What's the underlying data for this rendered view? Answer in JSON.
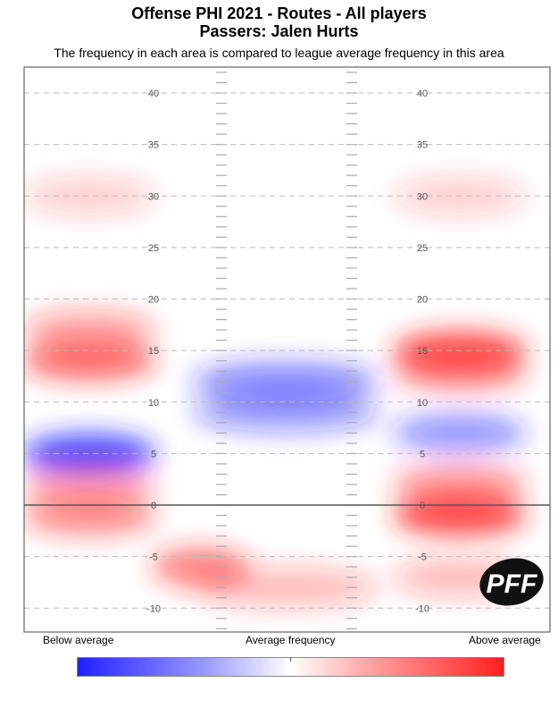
{
  "chart_data": {
    "type": "heatmap",
    "title_line1": "Offense PHI 2021 - Routes - All players",
    "title_line2": "Passers: Jalen Hurts",
    "subtitle": "The frequency in each area is compared to league average frequency in this area",
    "ylim": [
      -12,
      42
    ],
    "yticks": [
      40,
      35,
      30,
      25,
      20,
      15,
      10,
      5,
      0,
      -5,
      -10
    ],
    "tick_labels": [
      "40",
      "35",
      "30",
      "25",
      "20",
      "15",
      "10",
      "5",
      "0",
      "-5",
      "-10"
    ],
    "line_of_scrimmage": 0,
    "scale": "diverging",
    "colors": {
      "below": "#1f1fff",
      "average": "#ffffff",
      "above": "#ff1f1f",
      "line": "#555555",
      "grid": "#bbbbbb"
    },
    "hotspots": [
      {
        "side": "left",
        "yard": 14,
        "effect": "above",
        "strength": 0.75
      },
      {
        "side": "left",
        "yard": 17,
        "effect": "above",
        "strength": 0.45
      },
      {
        "side": "left",
        "yard": 30,
        "effect": "above",
        "strength": 0.25
      },
      {
        "side": "left",
        "yard": 5,
        "effect": "below",
        "strength": 0.95
      },
      {
        "side": "left",
        "yard": 2,
        "effect": "above",
        "strength": 0.45
      },
      {
        "side": "left",
        "yard": -1,
        "effect": "above",
        "strength": 0.6
      },
      {
        "side": "center-left",
        "yard": -6,
        "effect": "above",
        "strength": 0.65
      },
      {
        "side": "center",
        "yard": 12,
        "effect": "below",
        "strength": 0.6
      },
      {
        "side": "center",
        "yard": 9,
        "effect": "below",
        "strength": 0.5
      },
      {
        "side": "center",
        "yard": -8,
        "effect": "above",
        "strength": 0.35
      },
      {
        "side": "right",
        "yard": 15,
        "effect": "above",
        "strength": 0.9
      },
      {
        "side": "right",
        "yard": 13,
        "effect": "above",
        "strength": 0.6
      },
      {
        "side": "right",
        "yard": 30,
        "effect": "above",
        "strength": 0.25
      },
      {
        "side": "right",
        "yard": 7,
        "effect": "below",
        "strength": 0.55
      },
      {
        "side": "right",
        "yard": 2,
        "effect": "above",
        "strength": 0.55
      },
      {
        "side": "right",
        "yard": -1,
        "effect": "above",
        "strength": 0.95
      },
      {
        "side": "right",
        "yard": -7,
        "effect": "above",
        "strength": 0.35
      }
    ]
  },
  "legend": {
    "low": "Below average",
    "mid": "Average frequency",
    "high": "Above average"
  },
  "logo_text": "PFF"
}
